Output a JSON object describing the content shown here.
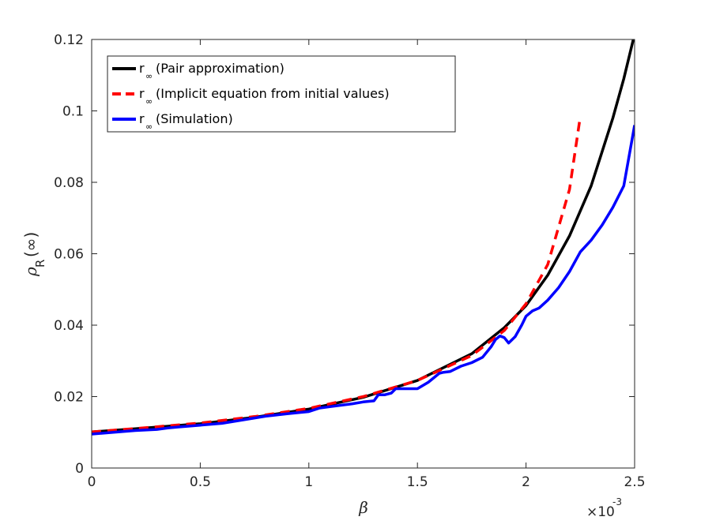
{
  "chart_data": {
    "type": "line",
    "xlabel": "β",
    "ylabel": "ρ",
    "ylabel_sub": "R",
    "ylabel_suffix": "(∞)",
    "x_exponent": "×10",
    "x_exponent_power": "-3",
    "xlim": [
      0,
      2.5
    ],
    "ylim": [
      0,
      0.12
    ],
    "x_ticks": [
      0,
      0.5,
      1,
      1.5,
      2,
      2.5
    ],
    "x_tick_labels": [
      "0",
      "0.5",
      "1",
      "1.5",
      "2",
      "2.5"
    ],
    "y_ticks": [
      0,
      0.02,
      0.04,
      0.06,
      0.08,
      0.1,
      0.12
    ],
    "y_tick_labels": [
      "0",
      "0.02",
      "0.04",
      "0.06",
      "0.08",
      "0.1",
      "0.12"
    ],
    "grid": false,
    "legend_position": "top-left",
    "series": [
      {
        "name": "r",
        "sub": "∞",
        "desc": " (Pair approximation)",
        "color": "#000000",
        "dash": "solid",
        "x": [
          0,
          0.25,
          0.5,
          0.75,
          1.0,
          1.25,
          1.5,
          1.75,
          1.9,
          2.0,
          2.1,
          2.2,
          2.3,
          2.4,
          2.45,
          2.5
        ],
        "y": [
          0.0101,
          0.0112,
          0.0124,
          0.0142,
          0.0165,
          0.0198,
          0.0245,
          0.032,
          0.0393,
          0.0455,
          0.054,
          0.065,
          0.079,
          0.098,
          0.109,
          0.1215
        ]
      },
      {
        "name": "r",
        "sub": "∞",
        "desc": " (Implicit equation from initial values)",
        "color": "#ff0000",
        "dash": "dashed",
        "x": [
          0,
          0.25,
          0.5,
          0.75,
          1.0,
          1.25,
          1.5,
          1.75,
          1.9,
          2.0,
          2.1,
          2.2,
          2.25
        ],
        "y": [
          0.0101,
          0.0113,
          0.0126,
          0.0144,
          0.0167,
          0.02,
          0.0245,
          0.0315,
          0.0385,
          0.046,
          0.057,
          0.078,
          0.0985
        ]
      },
      {
        "name": "r",
        "sub": "∞",
        "desc": " (Simulation)",
        "color": "#0000ff",
        "dash": "solid",
        "x": [
          0,
          0.1,
          0.2,
          0.3,
          0.35,
          0.4,
          0.5,
          0.6,
          0.7,
          0.8,
          0.9,
          1.0,
          1.05,
          1.1,
          1.2,
          1.25,
          1.3,
          1.32,
          1.35,
          1.38,
          1.4,
          1.45,
          1.5,
          1.55,
          1.6,
          1.62,
          1.65,
          1.7,
          1.75,
          1.8,
          1.84,
          1.86,
          1.88,
          1.9,
          1.92,
          1.95,
          1.98,
          2.0,
          2.03,
          2.06,
          2.1,
          2.15,
          2.2,
          2.25,
          2.3,
          2.35,
          2.4,
          2.45,
          2.5
        ],
        "y": [
          0.0095,
          0.01,
          0.0105,
          0.0108,
          0.0112,
          0.0115,
          0.012,
          0.0125,
          0.0135,
          0.0145,
          0.0152,
          0.0158,
          0.0168,
          0.0172,
          0.018,
          0.0185,
          0.0188,
          0.0205,
          0.0205,
          0.021,
          0.0222,
          0.0222,
          0.0222,
          0.024,
          0.0265,
          0.0268,
          0.027,
          0.0285,
          0.0295,
          0.031,
          0.034,
          0.036,
          0.037,
          0.0365,
          0.035,
          0.0368,
          0.04,
          0.0425,
          0.044,
          0.0448,
          0.047,
          0.0505,
          0.055,
          0.0605,
          0.0638,
          0.068,
          0.073,
          0.079,
          0.096
        ]
      }
    ]
  }
}
